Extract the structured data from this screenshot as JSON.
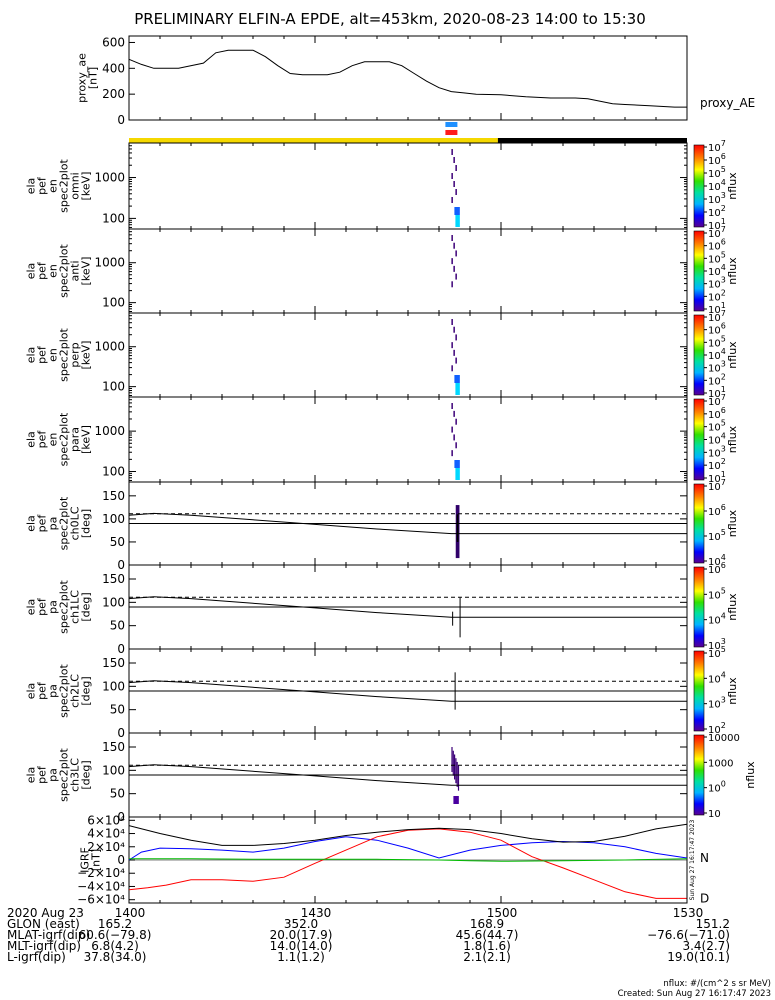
{
  "chart_data": {
    "type": "line",
    "title": "PRELIMINARY ELFIN-A EPDE, alt=453km, 2020-08-23 14:00 to 15:30",
    "x_range_minutes": [
      0,
      90
    ],
    "x_ticks": [
      "1400",
      "1430",
      "1500",
      "1530"
    ],
    "panels": [
      {
        "id": "proxy_ae",
        "type": "line",
        "ylabel": [
          "proxy_ae",
          "[nT]"
        ],
        "series_label": "proxy_AE",
        "ylim": [
          0,
          650
        ],
        "yticks": [
          "0",
          "200",
          "400",
          "600"
        ],
        "x": [
          0,
          2,
          4,
          8,
          12,
          14,
          16,
          18,
          20,
          22,
          24,
          26,
          28,
          32,
          34,
          36,
          38,
          40,
          42,
          44,
          46,
          48,
          50,
          52,
          54,
          56,
          60,
          64,
          68,
          72,
          74,
          76,
          78,
          80,
          82,
          84,
          88,
          90
        ],
        "values": [
          470,
          430,
          400,
          400,
          440,
          520,
          540,
          540,
          540,
          490,
          420,
          360,
          350,
          350,
          370,
          420,
          450,
          450,
          450,
          420,
          360,
          300,
          250,
          220,
          210,
          200,
          195,
          180,
          170,
          170,
          165,
          145,
          125,
          120,
          115,
          110,
          100,
          100
        ],
        "color": "#000000"
      },
      {
        "id": "state_bar",
        "type": "bar",
        "segments": [
          {
            "from": 0,
            "to": 59.5,
            "color": "#f5d800"
          },
          {
            "from": 59.5,
            "to": 90,
            "color": "#000000"
          }
        ],
        "markers": [
          {
            "at": 52,
            "color": "#1e90ff"
          },
          {
            "at": 52,
            "color": "#ff1a1a"
          }
        ]
      },
      {
        "id": "spec_omni",
        "type": "heatmap",
        "ylabel": [
          "ela",
          "pef",
          "en",
          "spec2plot",
          "omni",
          "[keV]"
        ],
        "yscale": "log",
        "ylim": [
          55,
          7000
        ],
        "yticks": [
          "100",
          "1000"
        ],
        "colorbar": {
          "label": "nflux",
          "range": [
            10,
            10000000
          ],
          "ticks": [
            "101",
            "102",
            "103",
            "104",
            "105",
            "106",
            "107"
          ]
        },
        "burst_minutes": [
          52,
          53.2
        ]
      },
      {
        "id": "spec_anti",
        "type": "heatmap",
        "ylabel": [
          "ela",
          "pef",
          "en",
          "spec2plot",
          "anti",
          "[keV]"
        ],
        "yscale": "log",
        "ylim": [
          55,
          7000
        ],
        "yticks": [
          "100",
          "1000"
        ],
        "colorbar": {
          "label": "nflux",
          "range": [
            10,
            10000000
          ],
          "ticks": [
            "101",
            "102",
            "103",
            "104",
            "105",
            "106",
            "107"
          ]
        },
        "burst_minutes": [
          52,
          53.2
        ]
      },
      {
        "id": "spec_perp",
        "type": "heatmap",
        "ylabel": [
          "ela",
          "pef",
          "en",
          "spec2plot",
          "perp",
          "[keV]"
        ],
        "yscale": "log",
        "ylim": [
          55,
          7000
        ],
        "yticks": [
          "100",
          "1000"
        ],
        "colorbar": {
          "label": "nflux",
          "range": [
            10,
            10000000
          ],
          "ticks": [
            "101",
            "102",
            "103",
            "104",
            "105",
            "106",
            "107"
          ]
        },
        "burst_minutes": [
          52,
          53.2
        ]
      },
      {
        "id": "spec_para",
        "type": "heatmap",
        "ylabel": [
          "ela",
          "pef",
          "en",
          "spec2plot",
          "para",
          "[keV]"
        ],
        "yscale": "log",
        "ylim": [
          55,
          7000
        ],
        "yticks": [
          "100",
          "1000"
        ],
        "colorbar": {
          "label": "nflux",
          "range": [
            10,
            10000000
          ],
          "ticks": [
            "101",
            "102",
            "103",
            "104",
            "105",
            "106",
            "107"
          ]
        },
        "burst_minutes": [
          52,
          53.2
        ]
      },
      {
        "id": "pa_ch0",
        "type": "heatmap",
        "ylabel": [
          "ela",
          "pef",
          "pa",
          "spec2plot",
          "ch0LC",
          "[deg]"
        ],
        "ylim": [
          0,
          180
        ],
        "yticks": [
          "0",
          "50",
          "100",
          "150"
        ],
        "colorbar": {
          "label": "nflux",
          "range": [
            10000,
            10000000
          ],
          "ticks": [
            "104",
            "105",
            "106",
            "107"
          ]
        },
        "burst_minutes": [
          52.7,
          53.3
        ]
      },
      {
        "id": "pa_ch1",
        "type": "heatmap",
        "ylabel": [
          "ela",
          "pef",
          "pa",
          "spec2plot",
          "ch1LC",
          "[deg]"
        ],
        "ylim": [
          0,
          180
        ],
        "yticks": [
          "0",
          "50",
          "100",
          "150"
        ],
        "colorbar": {
          "label": "nflux",
          "range": [
            1000,
            1000000
          ],
          "ticks": [
            "103",
            "104",
            "105",
            "106"
          ]
        },
        "burst_minutes": [
          52.2,
          53.4
        ]
      },
      {
        "id": "pa_ch2",
        "type": "heatmap",
        "ylabel": [
          "ela",
          "pef",
          "pa",
          "spec2plot",
          "ch2LC",
          "[deg]"
        ],
        "ylim": [
          0,
          180
        ],
        "yticks": [
          "0",
          "50",
          "100",
          "150"
        ],
        "colorbar": {
          "label": "nflux",
          "range": [
            100,
            100000
          ],
          "ticks": [
            "102",
            "103",
            "104",
            "105"
          ]
        },
        "burst_minutes": [
          52.6,
          52.8
        ]
      },
      {
        "id": "pa_ch3",
        "type": "heatmap",
        "ylabel": [
          "ela",
          "pef",
          "pa",
          "spec2plot",
          "ch3LC",
          "[deg]"
        ],
        "ylim": [
          0,
          180
        ],
        "yticks": [
          "0",
          "50",
          "100",
          "150"
        ],
        "colorbar": {
          "label": "nflux",
          "range": [
            10,
            10000
          ],
          "ticks": [
            "10",
            "100",
            "1000",
            "10000"
          ]
        },
        "burst_minutes": [
          52,
          53.2
        ]
      },
      {
        "id": "igrf",
        "type": "line",
        "ylabel": [
          "IGRF",
          "[nT]"
        ],
        "ylim": [
          -65000,
          65000
        ],
        "yticks": [
          "6×10⁴",
          "4×10⁴",
          "2×10⁴",
          "0",
          "−2×10⁴",
          "−4×10⁴",
          "−6×10⁴"
        ],
        "series": [
          {
            "name": "N",
            "color": "#0000ff",
            "x": [
              0,
              2,
              5,
              10,
              15,
              20,
              25,
              30,
              35,
              40,
              45,
              50,
              55,
              60,
              65,
              70,
              75,
              80,
              85,
              90
            ],
            "values": [
              0,
              12000,
              18000,
              17000,
              15000,
              12000,
              18000,
              28000,
              35000,
              30000,
              18000,
              3000,
              15000,
              22000,
              26000,
              28000,
              26000,
              20000,
              10000,
              3000
            ]
          },
          {
            "name": "D",
            "color": "#ff0000",
            "x": [
              0,
              3,
              6,
              10,
              15,
              20,
              25,
              30,
              35,
              40,
              45,
              50,
              55,
              60,
              65,
              70,
              75,
              80,
              85,
              90
            ],
            "values": [
              -45000,
              -42000,
              -38000,
              -30000,
              -30000,
              -32000,
              -26000,
              -5000,
              15000,
              35000,
              45000,
              47000,
              42000,
              30000,
              5000,
              -12000,
              -30000,
              -48000,
              -58000,
              -58000
            ]
          },
          {
            "name": "",
            "color": "#00bb00",
            "x": [
              0,
              10,
              20,
              30,
              40,
              50,
              55,
              60,
              70,
              80,
              90
            ],
            "values": [
              2000,
              2000,
              1000,
              1000,
              1000,
              0,
              -1000,
              -2000,
              -1000,
              0,
              2000
            ]
          },
          {
            "name": "",
            "color": "#000000",
            "x": [
              0,
              5,
              10,
              15,
              20,
              25,
              30,
              35,
              40,
              45,
              50,
              55,
              60,
              65,
              70,
              75,
              80,
              85,
              90
            ],
            "values": [
              52000,
              40000,
              30000,
              22000,
              22000,
              25000,
              30000,
              37000,
              42000,
              46000,
              48000,
              46000,
              40000,
              32000,
              27000,
              28000,
              36000,
              47000,
              54000
            ]
          }
        ]
      }
    ],
    "pa_lines": [
      {
        "style": "dashed",
        "x": [
          0,
          90
        ],
        "values": [
          111,
          111
        ]
      },
      {
        "style": "solid",
        "x": [
          0,
          90
        ],
        "values": [
          90,
          90
        ]
      },
      {
        "style": "solid",
        "x": [
          0,
          4,
          10,
          20,
          30,
          40,
          52,
          90
        ],
        "values": [
          108,
          112,
          108,
          98,
          88,
          78,
          68,
          68
        ]
      }
    ]
  },
  "footer": {
    "rows": [
      {
        "label": "2020 Aug 23",
        "values": [
          "1400",
          "1430",
          "1500",
          "1530"
        ]
      },
      {
        "label": "GLON (east)",
        "values": [
          "165.2",
          "352.0",
          "168.9",
          "151.2"
        ]
      },
      {
        "label": "MLAT-igrf(dip)",
        "values": [
          "60.6(−79.8)",
          "20.0(17.9)",
          "45.6(44.7)",
          "−76.6(−71.0)"
        ]
      },
      {
        "label": "MLT-igrf(dip)",
        "values": [
          "6.8(4.2)",
          "14.0(14.0)",
          "1.8(1.6)",
          "3.4(2.7)"
        ]
      },
      {
        "label": "L-igrf(dip)",
        "values": [
          "37.8(34.0)",
          "1.1(1.2)",
          "2.1(2.1)",
          "19.0(10.1)"
        ]
      }
    ],
    "units_note": "nflux: #/(cm^2 s sr MeV)",
    "created_note": "Created: Sun Aug 27 16:17:47 2023",
    "side_stamp": "Sun Aug 27 16:17:47 2023"
  }
}
